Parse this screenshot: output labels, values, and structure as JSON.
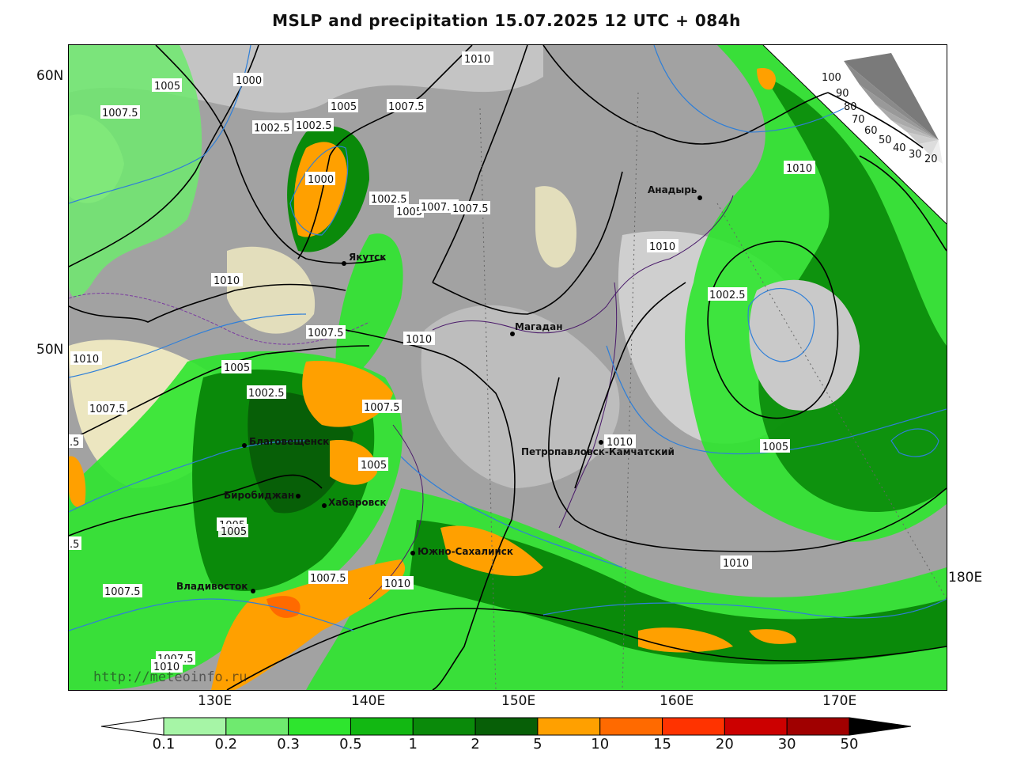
{
  "title": "MSLP and precipitation 15.07.2025 12 UTC + 084h",
  "watermark": "http://meteoinfo.ru",
  "lat_labels": [
    "60N",
    "50N"
  ],
  "lon_labels": [
    "130E",
    "140E",
    "150E",
    "160E",
    "170E",
    "180E"
  ],
  "cities": [
    "Якутск",
    "Магадан",
    "Анадырь",
    "Благовещенск",
    "Биробиджан",
    "Хабаровск",
    "Петропавловск-Камчатский",
    "Южно-Сахалинск",
    "Владивосток"
  ],
  "isobar_labels": [
    "1010",
    "1005",
    "1000",
    "1007.5",
    "1002.5",
    "1005",
    "1007.5",
    "1002.5",
    "1000",
    "1002.5",
    "1005",
    "1007.5",
    "1007.5",
    "1010",
    "1010",
    "1010",
    "1002.5",
    "1010",
    "1007.5",
    "1010",
    "1005",
    "1002.5",
    "1007.5",
    "1007.5",
    "1005",
    "1010",
    "1005",
    "1007.5",
    "1005",
    "1005",
    "1010",
    "1007.5",
    "1010",
    "1007.5",
    "1010",
    "1005",
    ".5",
    ".5"
  ],
  "cloud_scale": [
    "100",
    "90",
    "80",
    "70",
    "60",
    "50",
    "40",
    "30",
    "20"
  ],
  "precip_legend": {
    "ticks": [
      "0.1",
      "0.2",
      "0.3",
      "0.5",
      "1",
      "2",
      "5",
      "10",
      "15",
      "20",
      "30",
      "50"
    ],
    "colors": [
      "#a6f5a6",
      "#6fea6f",
      "#2ee52e",
      "#12b812",
      "#0a8a0a",
      "#075f07",
      "#ffa000",
      "#ff6a00",
      "#ff3300",
      "#cc0000",
      "#a00000"
    ]
  }
}
